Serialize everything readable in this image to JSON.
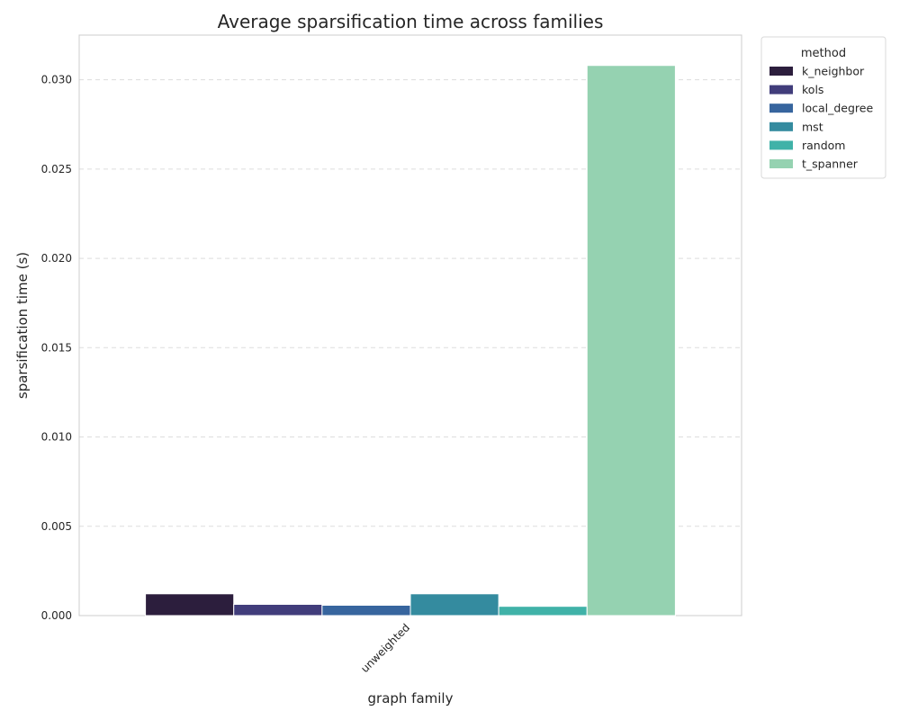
{
  "chart_data": {
    "type": "bar",
    "title": "Average sparsification time across families",
    "xlabel": "graph family",
    "ylabel": "sparsification time (s)",
    "categories": [
      "unweighted"
    ],
    "ylim": [
      0,
      0.0325
    ],
    "yticks": [
      "0.000",
      "0.005",
      "0.010",
      "0.015",
      "0.020",
      "0.025",
      "0.030"
    ],
    "grid": "y-dashed",
    "legend": {
      "title": "method",
      "placement": "outside-top-right"
    },
    "series": [
      {
        "name": "k_neighbor",
        "color": "#2c1e3d",
        "values": [
          0.00122
        ]
      },
      {
        "name": "kols",
        "color": "#413d7b",
        "values": [
          0.00063
        ]
      },
      {
        "name": "local_degree",
        "color": "#37659e",
        "values": [
          0.00058
        ]
      },
      {
        "name": "mst",
        "color": "#348b9f",
        "values": [
          0.00122
        ]
      },
      {
        "name": "random",
        "color": "#40b2a8",
        "values": [
          0.00052
        ]
      },
      {
        "name": "t_spanner",
        "color": "#95d2b1",
        "values": [
          0.0308
        ]
      }
    ]
  }
}
